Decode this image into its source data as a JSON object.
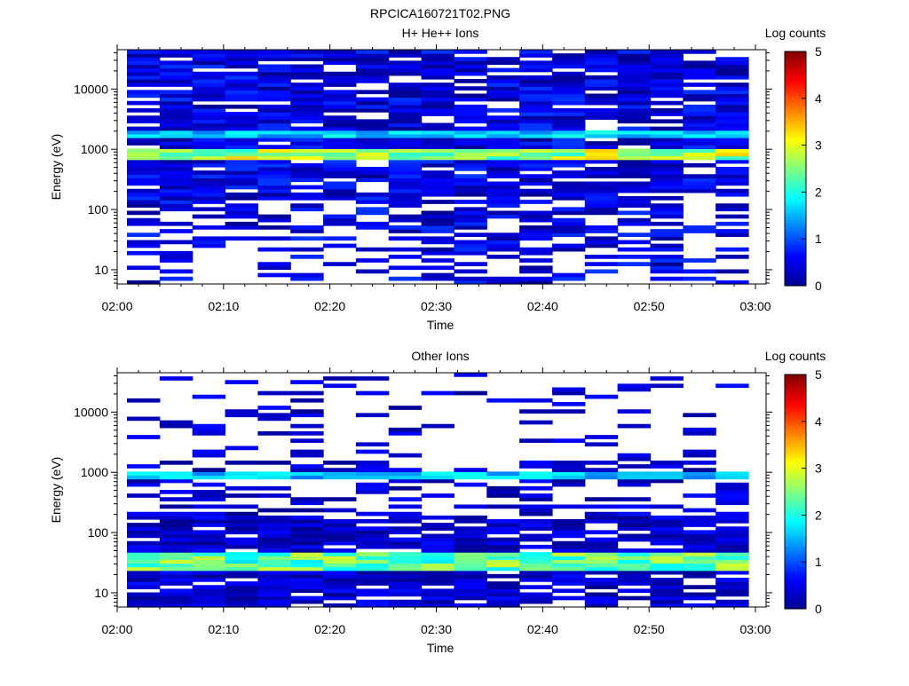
{
  "figure": {
    "title": "RPCICA160721T02.PNG"
  },
  "colorbar": {
    "label": "Log counts",
    "ticks": [
      "0",
      "1",
      "2",
      "3",
      "4",
      "5"
    ],
    "range": [
      0,
      5
    ],
    "colormap": [
      "#00008f",
      "#0000ff",
      "#0080ff",
      "#00ffff",
      "#80ff80",
      "#ffff00",
      "#ff8000",
      "#ff0000",
      "#800000"
    ]
  },
  "chart_data": [
    {
      "type": "heatmap",
      "title": "H+ He++ Ions",
      "xlabel": "Time",
      "ylabel": "Energy (eV)",
      "x_tick_labels": [
        "02:00",
        "02:10",
        "02:20",
        "02:30",
        "02:40",
        "02:50",
        "03:00"
      ],
      "y_tick_labels": [
        "10",
        "100",
        "1000",
        "10000"
      ],
      "y_scale": "log",
      "y_range_eV": [
        5.8,
        45000
      ],
      "x_range": [
        "02:00",
        "03:01"
      ],
      "time_bins": 19,
      "energy_bins": 64,
      "dominant_band_eV": [
        650,
        1100
      ],
      "secondary_band_eV": [
        1500,
        2000
      ],
      "background_max_log_counts": 0.9,
      "band_peak_log_counts": 3.4
    },
    {
      "type": "heatmap",
      "title": "Other Ions",
      "xlabel": "Time",
      "ylabel": "Energy (eV)",
      "x_tick_labels": [
        "02:00",
        "02:10",
        "02:20",
        "02:30",
        "02:40",
        "02:50",
        "03:00"
      ],
      "y_tick_labels": [
        "10",
        "100",
        "1000",
        "10000"
      ],
      "y_scale": "log",
      "y_range_eV": [
        5.8,
        45000
      ],
      "x_range": [
        "02:00",
        "03:01"
      ],
      "time_bins": 19,
      "energy_bins": 64,
      "dominant_band_eV": [
        25,
        45
      ],
      "secondary_band_eV": [
        750,
        1000
      ],
      "background_max_log_counts": 0.7,
      "band_peak_log_counts": 2.9
    }
  ]
}
